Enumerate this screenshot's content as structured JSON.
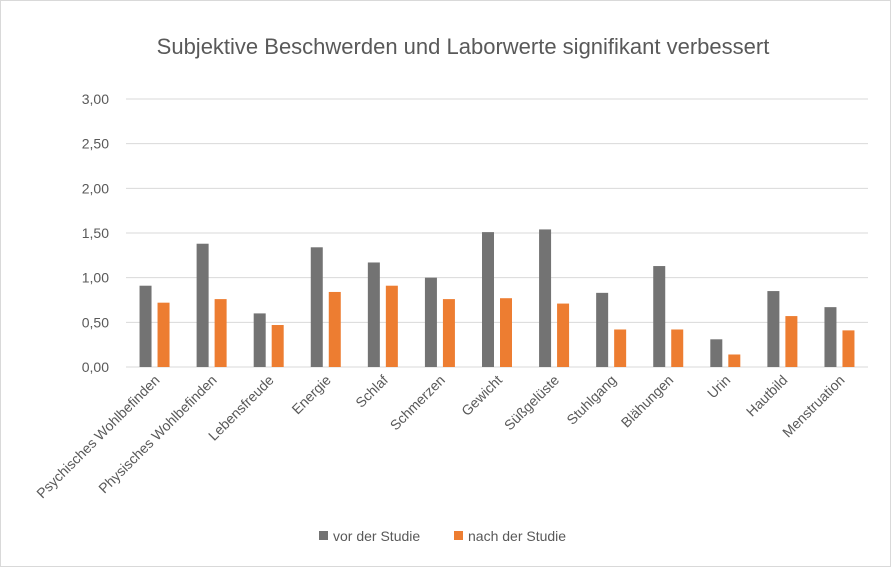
{
  "chart_data": {
    "type": "bar",
    "title": "Subjektive Beschwerden und Laborwerte signifikant verbessert",
    "xlabel": "",
    "ylabel": "",
    "ylim": [
      0,
      3
    ],
    "yticks": [
      "0,00",
      "0,50",
      "1,00",
      "1,50",
      "2,00",
      "2,50",
      "3,00"
    ],
    "grid": true,
    "legend_position": "bottom",
    "categories": [
      "Psychisches Wohlbefinden",
      "Physisches Wohlbefinden",
      "Lebensfreude",
      "Energie",
      "Schlaf",
      "Schmerzen",
      "Gewicht",
      "Süßgelüste",
      "Stuhlgang",
      "Blähungen",
      "Urin",
      "Hautbild",
      "Menstruation"
    ],
    "series": [
      {
        "name": "vor der Studie",
        "color": "#737373",
        "values": [
          0.91,
          1.38,
          0.6,
          1.34,
          1.17,
          1.0,
          1.51,
          1.54,
          0.83,
          1.13,
          0.31,
          0.85,
          0.67
        ]
      },
      {
        "name": "nach der Studie",
        "color": "#ed7d31",
        "values": [
          0.72,
          0.76,
          0.47,
          0.84,
          0.91,
          0.76,
          0.77,
          0.71,
          0.42,
          0.42,
          0.14,
          0.57,
          0.41
        ]
      }
    ]
  }
}
